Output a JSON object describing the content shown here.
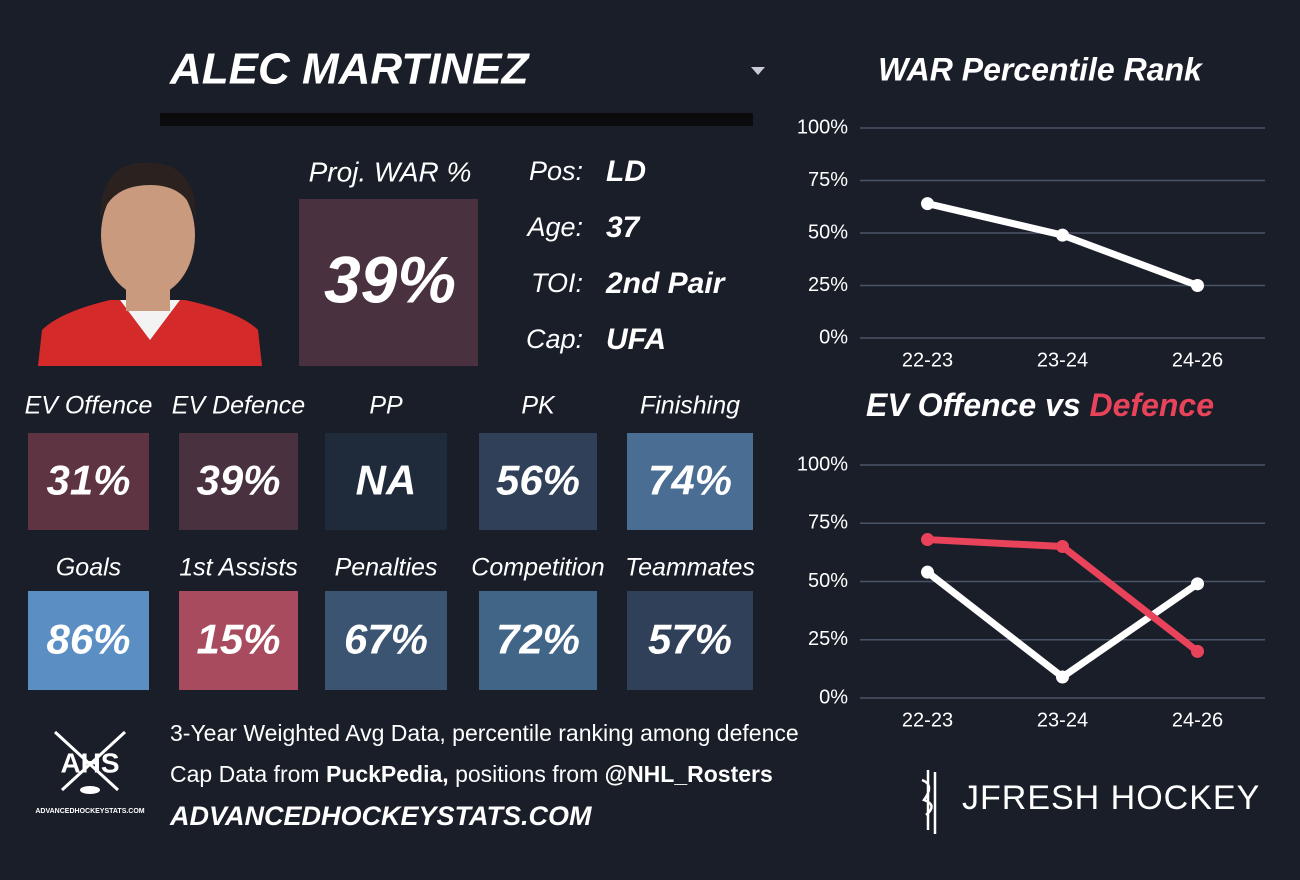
{
  "player": {
    "name": "ALEC MARTINEZ"
  },
  "proj_war": {
    "label": "Proj. WAR %",
    "value": "39%",
    "color": "#4a3140"
  },
  "info": [
    {
      "label": "Pos:",
      "value": "LD"
    },
    {
      "label": "Age:",
      "value": "37"
    },
    {
      "label": "TOI:",
      "value": "2nd Pair"
    },
    {
      "label": "Cap:",
      "value": "UFA"
    }
  ],
  "tiles": [
    {
      "label": "EV Offence",
      "value": "31%",
      "color": "#5e3442"
    },
    {
      "label": "EV Defence",
      "value": "39%",
      "color": "#4a3140"
    },
    {
      "label": "PP",
      "value": "NA",
      "color": "#1f2b3a"
    },
    {
      "label": "PK",
      "value": "56%",
      "color": "#2f4058"
    },
    {
      "label": "Finishing",
      "value": "74%",
      "color": "#4a6d94"
    },
    {
      "label": "Goals",
      "value": "86%",
      "color": "#5b8fc4"
    },
    {
      "label": "1st Assists",
      "value": "15%",
      "color": "#a94b5e"
    },
    {
      "label": "Penalties",
      "value": "67%",
      "color": "#3a5472"
    },
    {
      "label": "Competition",
      "value": "72%",
      "color": "#416587"
    },
    {
      "label": "Teammates",
      "value": "57%",
      "color": "#2f4058"
    }
  ],
  "footer": {
    "line1": "3-Year Weighted Avg Data, percentile ranking among defence",
    "line2": [
      {
        "text": "Cap Data from ",
        "bold": false
      },
      {
        "text": "PuckPedia,",
        "bold": true
      },
      {
        "text": " positions from ",
        "bold": false
      },
      {
        "text": "@NHL_Rosters",
        "bold": true
      }
    ],
    "site": "ADVANCEDHOCKEYSTATS.COM"
  },
  "logos": {
    "ahs": "AHS",
    "ahs_sub": "ADVANCEDHOCKEYSTATS.COM",
    "brand": "JFRESH HOCKEY"
  },
  "chart_data": [
    {
      "type": "line",
      "title": "WAR Percentile Rank",
      "categories": [
        "22-23",
        "23-24",
        "24-26"
      ],
      "series": [
        {
          "color": "#ffffff",
          "values": [
            64,
            49,
            25
          ]
        }
      ],
      "ylim": [
        0,
        100
      ],
      "yticks": [
        {
          "value": 0,
          "label": "0%"
        },
        {
          "value": 25,
          "label": "25%"
        },
        {
          "value": 50,
          "label": "50%"
        },
        {
          "value": 75,
          "label": "75%"
        },
        {
          "value": 100,
          "label": "100%"
        }
      ],
      "grid": true
    },
    {
      "type": "line",
      "title_parts": [
        {
          "text": "EV Offence vs ",
          "color": "#ffffff"
        },
        {
          "text": "Defence",
          "color": "#e8435a"
        }
      ],
      "categories": [
        "22-23",
        "23-24",
        "24-26"
      ],
      "series": [
        {
          "color": "#ffffff",
          "values": [
            54,
            9,
            49
          ]
        },
        {
          "color": "#e8435a",
          "values": [
            68,
            65,
            20
          ]
        }
      ],
      "ylim": [
        0,
        100
      ],
      "yticks": [
        {
          "value": 0,
          "label": "0%"
        },
        {
          "value": 25,
          "label": "25%"
        },
        {
          "value": 50,
          "label": "50%"
        },
        {
          "value": 75,
          "label": "75%"
        },
        {
          "value": 100,
          "label": "100%"
        }
      ],
      "grid": true
    }
  ]
}
